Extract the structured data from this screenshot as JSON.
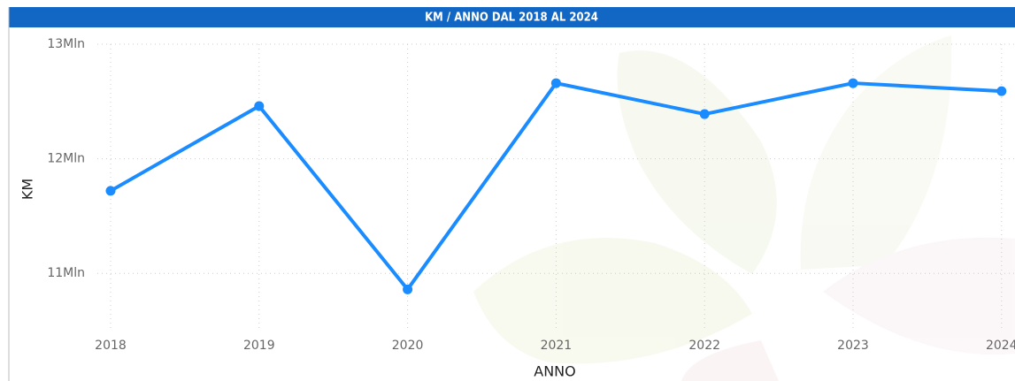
{
  "chart_data": {
    "type": "line",
    "title": "KM / ANNO DAL 2018 AL 2024",
    "x_label": "ANNO",
    "y_label": "KM",
    "categories": [
      "2018",
      "2019",
      "2020",
      "2021",
      "2022",
      "2023",
      "2024"
    ],
    "series": [
      {
        "name": "KM",
        "color": "#1a8cff",
        "values": [
          11720000,
          12460000,
          10860000,
          12660000,
          12390000,
          12660000,
          12590000
        ]
      }
    ],
    "ylim": [
      10500000,
      13000000
    ],
    "yticks": [
      {
        "value": 11000000,
        "label": "11Mln"
      },
      {
        "value": 12000000,
        "label": "12Mln"
      },
      {
        "value": 13000000,
        "label": "13Mln"
      }
    ],
    "grid": true
  }
}
